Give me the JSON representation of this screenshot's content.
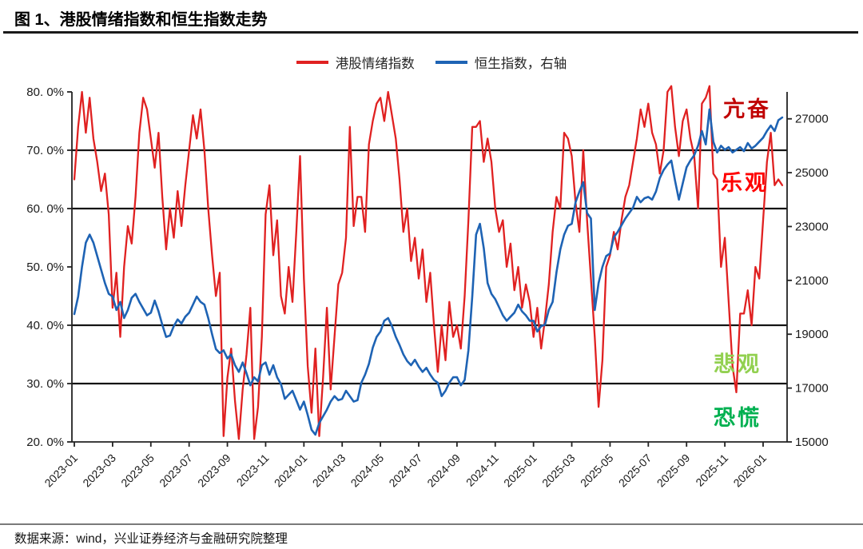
{
  "page": {
    "title": "图 1、港股情绪指数和恒生指数走势",
    "source": "数据来源：wind，兴业证券经济与金融研究院整理"
  },
  "annotations": {
    "euphoric": {
      "label": "亢奋",
      "color": "#c00000"
    },
    "optimistic": {
      "label": "乐观",
      "color": "#ff0000"
    },
    "pessimistic": {
      "label": "悲观",
      "color": "#92d050"
    },
    "panic": {
      "label": "恐慌",
      "color": "#00b050"
    }
  },
  "chart_data": {
    "type": "line",
    "title": "港股情绪指数和恒生指数走势",
    "legend_position": "top",
    "x_unit": "months since 2023-01",
    "x_start": 0,
    "x_step": 0.2,
    "x_axis": {
      "tick_months": [
        0,
        2,
        4,
        6,
        8,
        10,
        12,
        14,
        16,
        18,
        20,
        22,
        24,
        26,
        28,
        30,
        32,
        34,
        36
      ],
      "tick_labels": [
        "2023-01",
        "2023-03",
        "2023-05",
        "2023-07",
        "2023-09",
        "2023-11",
        "2024-01",
        "2024-03",
        "2024-05",
        "2024-07",
        "2024-09",
        "2024-11",
        "2025-01",
        "2025-03",
        "2025-05",
        "2025-07",
        "2025-09",
        "2025-11",
        "2026-01"
      ]
    },
    "left_axis": {
      "min": 20,
      "max": 80,
      "tick_values": [
        80,
        70,
        60,
        50,
        40,
        30,
        20
      ],
      "tick_labels": [
        "80. 0%",
        "70. 0%",
        "60. 0%",
        "50. 0%",
        "40. 0%",
        "30. 0%",
        "20. 0%"
      ]
    },
    "right_axis": {
      "min": 15000,
      "max": 28000,
      "tick_values": [
        27000,
        25000,
        23000,
        21000,
        19000,
        17000,
        15000
      ],
      "tick_labels": [
        "27000",
        "25000",
        "23000",
        "21000",
        "19000",
        "17000",
        "15000"
      ]
    },
    "reference_lines_left_pct": [
      70,
      60,
      40,
      30
    ],
    "series": [
      {
        "name": "港股情绪指数",
        "axis": "left",
        "color": "#e02121",
        "values": [
          65,
          74,
          80,
          73,
          79,
          72,
          68,
          63,
          66,
          59,
          43,
          49,
          38,
          50,
          57,
          54,
          62,
          73,
          79,
          77,
          72,
          67,
          73,
          62,
          53,
          60,
          55,
          63,
          57,
          64,
          70,
          76,
          72,
          77,
          70,
          60,
          52,
          45,
          49,
          21,
          31,
          36,
          27,
          20.5,
          29,
          35,
          43,
          20.5,
          26,
          38,
          59,
          64,
          52,
          58,
          45,
          42,
          50,
          44,
          56,
          69,
          48,
          33,
          25,
          36,
          21,
          31,
          43,
          29,
          38,
          47,
          49,
          55,
          74,
          57,
          62,
          62,
          56,
          71,
          75,
          78,
          79,
          75,
          80,
          76,
          72,
          65,
          56,
          60,
          51,
          55,
          48,
          53,
          44,
          49,
          40,
          32,
          40,
          34,
          44,
          38,
          40,
          36,
          45,
          58,
          74,
          74,
          75,
          68,
          72,
          68,
          60,
          56,
          58,
          50,
          54,
          46,
          50,
          43,
          47,
          44,
          38,
          43,
          36,
          41,
          47,
          56,
          62,
          60,
          73,
          72,
          69,
          61,
          56,
          70,
          58,
          48,
          38,
          26,
          34,
          50,
          52,
          56,
          53,
          58,
          62,
          64,
          68,
          72,
          77,
          74,
          78,
          73,
          71,
          66,
          70,
          80,
          81,
          74,
          69,
          75,
          77,
          72,
          69,
          60,
          78,
          79,
          81,
          66,
          65,
          50,
          55,
          44,
          33,
          28.5,
          42,
          42,
          46,
          40,
          50,
          48,
          58,
          68,
          73,
          64,
          65,
          64
        ]
      },
      {
        "name": "恒生指数，右轴",
        "axis": "right",
        "color": "#1e63b4",
        "values": [
          19750,
          20400,
          21500,
          22400,
          22700,
          22400,
          21900,
          21400,
          20900,
          20500,
          20400,
          19900,
          20200,
          19600,
          19900,
          20350,
          20500,
          20200,
          19950,
          19700,
          19800,
          20250,
          19850,
          19350,
          18900,
          18950,
          19300,
          19550,
          19400,
          19650,
          19800,
          20100,
          20400,
          20200,
          20100,
          19600,
          19000,
          18450,
          18300,
          18400,
          18100,
          18250,
          17850,
          17600,
          17950,
          17550,
          17100,
          17400,
          17250,
          17850,
          17950,
          17500,
          17850,
          17400,
          17150,
          16600,
          16750,
          16900,
          16550,
          16200,
          16500,
          16000,
          15450,
          15270,
          15700,
          15950,
          16200,
          16500,
          16700,
          16550,
          16600,
          16900,
          16700,
          16500,
          16550,
          17200,
          17500,
          17900,
          18500,
          18900,
          19100,
          19500,
          19600,
          19300,
          18900,
          18600,
          18250,
          18000,
          17850,
          18050,
          17800,
          17600,
          17750,
          17500,
          17300,
          17200,
          16700,
          16900,
          17200,
          17400,
          17400,
          17100,
          17300,
          18400,
          20400,
          22700,
          23100,
          22200,
          20900,
          20500,
          20300,
          20000,
          19700,
          19500,
          19650,
          19800,
          20100,
          19850,
          19700,
          19500,
          19500,
          19100,
          19300,
          19350,
          19900,
          20200,
          21300,
          22150,
          22700,
          23030,
          23100,
          23900,
          24300,
          24650,
          23500,
          23300,
          19900,
          20900,
          21500,
          21900,
          22000,
          22600,
          22800,
          23050,
          23300,
          23500,
          23700,
          24100,
          23900,
          24050,
          24100,
          24000,
          24300,
          24800,
          25100,
          25300,
          25450,
          24700,
          24000,
          24600,
          25200,
          25450,
          25650,
          26000,
          26550,
          26050,
          27350,
          26150,
          25750,
          26000,
          25850,
          25950,
          25750,
          25850,
          25950,
          25800,
          26100,
          25900,
          26000,
          26150,
          26300,
          26550,
          26750,
          26550,
          26950,
          27050
        ]
      }
    ]
  }
}
